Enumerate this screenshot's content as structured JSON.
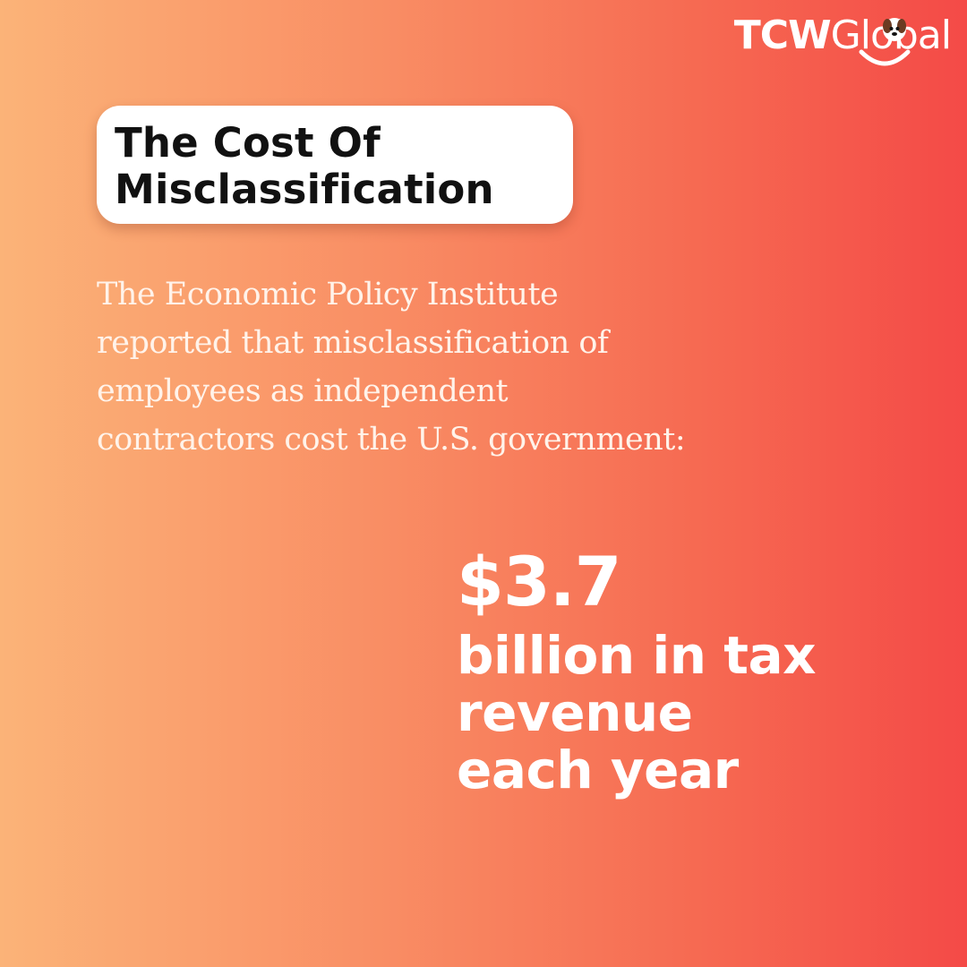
{
  "brand": {
    "logo_bold": "TCW",
    "logo_light": "Global"
  },
  "title": {
    "line1": "The Cost Of",
    "line2": "Misclassification"
  },
  "intro": {
    "line1": "The Economic Policy Institute",
    "line2": "reported that misclassification of",
    "line3": "employees as independent",
    "line4": "contractors cost the U.S. government:"
  },
  "stat": {
    "amount": "$3.7",
    "line1": "billion in tax",
    "line2": "revenue",
    "line3": "each year"
  },
  "colors": {
    "gradient_start": "#fbb378",
    "gradient_end": "#f44a47",
    "card_background": "#ffffff",
    "title_text": "#111111"
  }
}
